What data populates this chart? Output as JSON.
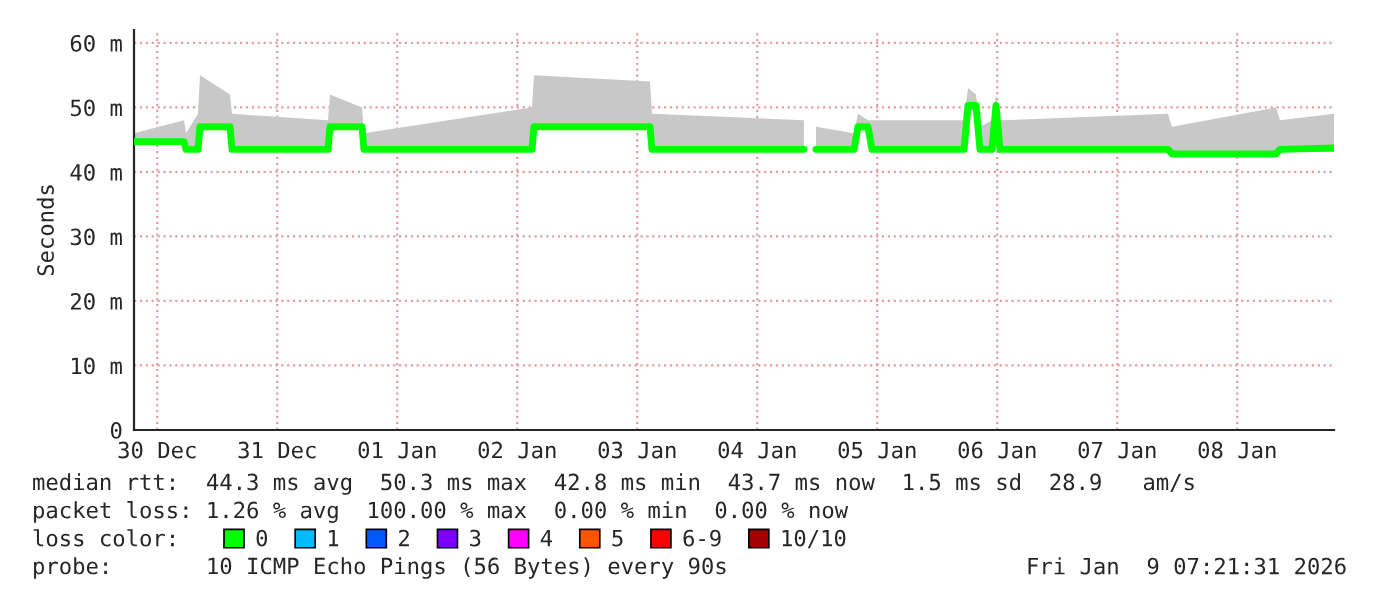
{
  "chart_data": {
    "type": "line",
    "ylabel": "Seconds",
    "x": [
      "2025-12-30T07:21",
      "2025-12-30T17:21",
      "2025-12-30T17:45",
      "2025-12-30T20:09",
      "2025-12-30T20:33",
      "2025-12-31T02:33",
      "2025-12-31T02:57",
      "2025-12-31T22:09",
      "2025-12-31T22:33",
      "2026-01-01T04:57",
      "2026-01-01T05:21",
      "2026-01-02T14:57",
      "2026-01-02T15:21",
      "2026-01-03T14:33",
      "2026-01-03T14:57",
      "2026-01-04T21:21",
      "2026-01-04T22:33",
      "2026-01-04T23:45",
      "2026-01-05T07:21",
      "2026-01-05T08:09",
      "2026-01-05T10:09",
      "2026-01-05T10:57",
      "2026-01-06T05:21",
      "2026-01-06T06:09",
      "2026-01-06T07:45",
      "2026-01-06T08:33",
      "2026-01-06T10:57",
      "2026-01-06T11:45",
      "2026-01-06T12:33",
      "2026-01-07T22:09",
      "2026-01-07T22:57",
      "2026-01-08T19:45",
      "2026-01-08T20:33",
      "2026-01-09T07:21"
    ],
    "series": [
      {
        "name": "0",
        "color": "#00ff00",
        "values": [
          44.7,
          44.7,
          43.5,
          43.5,
          47.0,
          47.0,
          43.5,
          43.5,
          47.0,
          47.0,
          43.5,
          43.5,
          47.0,
          47.0,
          43.5,
          43.5,
          null,
          43.5,
          43.5,
          47.0,
          47.0,
          43.5,
          43.5,
          50.3,
          50.3,
          43.5,
          43.5,
          50.3,
          43.5,
          43.5,
          42.8,
          42.8,
          43.5,
          43.7
        ],
        "lower": [
          44.3,
          44.3,
          43.1,
          43.1,
          46.5,
          46.5,
          43.1,
          43.1,
          46.5,
          46.5,
          43.1,
          43.1,
          46.5,
          46.5,
          43.1,
          43.1,
          null,
          43.1,
          43.1,
          46.5,
          46.5,
          43.1,
          43.1,
          49.5,
          49.5,
          43.1,
          43.1,
          49.5,
          43.1,
          43.1,
          42.2,
          42.2,
          43.1,
          43.1
        ],
        "upper": [
          46,
          48,
          46,
          49,
          55,
          52,
          49,
          48,
          52,
          50,
          46,
          50,
          55,
          54,
          49,
          48,
          null,
          47,
          46,
          49,
          48,
          48,
          48,
          53,
          52,
          47,
          48,
          52,
          48,
          49,
          47,
          50,
          48,
          49
        ]
      },
      {
        "name": "1",
        "color": "#00bbff",
        "values": [
          null,
          null,
          null,
          null,
          null,
          null,
          null,
          null,
          null,
          null,
          null,
          null,
          null,
          null,
          null,
          null,
          null,
          null,
          null,
          null,
          null,
          null,
          null,
          null,
          null,
          null,
          null,
          null,
          null,
          null,
          null,
          null,
          null,
          null
        ]
      },
      {
        "name": "2",
        "color": "#0059ff",
        "values": [
          null,
          null,
          null,
          null,
          null,
          null,
          null,
          null,
          null,
          null,
          null,
          null,
          null,
          null,
          null,
          null,
          null,
          null,
          null,
          null,
          null,
          null,
          null,
          null,
          null,
          null,
          null,
          null,
          null,
          null,
          null,
          null,
          null,
          null
        ]
      },
      {
        "name": "3",
        "color": "#7e00ff",
        "values": [
          null,
          null,
          null,
          null,
          null,
          null,
          null,
          null,
          null,
          null,
          null,
          null,
          null,
          null,
          null,
          null,
          null,
          null,
          null,
          null,
          null,
          null,
          null,
          null,
          null,
          null,
          null,
          null,
          null,
          null,
          null,
          null,
          null,
          null
        ]
      },
      {
        "name": "4",
        "color": "#ff00ff",
        "values": [
          null,
          null,
          null,
          null,
          null,
          null,
          null,
          null,
          null,
          null,
          null,
          null,
          null,
          null,
          null,
          null,
          null,
          null,
          null,
          null,
          null,
          null,
          null,
          null,
          null,
          null,
          null,
          null,
          null,
          null,
          null,
          null,
          null,
          null
        ]
      },
      {
        "name": "5",
        "color": "#ff5500",
        "values": [
          null,
          null,
          null,
          null,
          null,
          null,
          null,
          null,
          null,
          null,
          null,
          null,
          null,
          null,
          null,
          null,
          null,
          null,
          null,
          null,
          null,
          null,
          null,
          null,
          null,
          null,
          null,
          null,
          null,
          null,
          null,
          null,
          null,
          null
        ]
      },
      {
        "name": "6-9",
        "color": "#ff0000",
        "values": [
          null,
          null,
          null,
          null,
          null,
          null,
          null,
          null,
          null,
          null,
          null,
          null,
          null,
          null,
          null,
          null,
          null,
          null,
          null,
          null,
          null,
          null,
          null,
          null,
          null,
          null,
          null,
          null,
          null,
          null,
          null,
          null,
          null,
          null
        ]
      },
      {
        "name": "10/10",
        "color": "#a10000",
        "values": [
          null,
          null,
          null,
          null,
          null,
          null,
          null,
          null,
          null,
          null,
          null,
          null,
          null,
          null,
          null,
          null,
          null,
          null,
          null,
          null,
          null,
          null,
          null,
          null,
          null,
          null,
          null,
          null,
          null,
          null,
          null,
          null,
          null,
          null
        ]
      }
    ],
    "xlim": [
      "2025-12-30T07:21",
      "2026-01-09T07:21"
    ],
    "xticks": [
      {
        "value": "2025-12-30T12:00",
        "label": "30 Dec"
      },
      {
        "value": "2025-12-31T12:00",
        "label": "31 Dec"
      },
      {
        "value": "2026-01-01T12:00",
        "label": "01 Jan"
      },
      {
        "value": "2026-01-02T12:00",
        "label": "02 Jan"
      },
      {
        "value": "2026-01-03T12:00",
        "label": "03 Jan"
      },
      {
        "value": "2026-01-04T12:00",
        "label": "04 Jan"
      },
      {
        "value": "2026-01-05T12:00",
        "label": "05 Jan"
      },
      {
        "value": "2026-01-06T12:00",
        "label": "06 Jan"
      },
      {
        "value": "2026-01-07T12:00",
        "label": "07 Jan"
      },
      {
        "value": "2026-01-08T12:00",
        "label": "08 Jan"
      }
    ],
    "ylim": [
      0,
      62
    ],
    "yticks": [
      0,
      {
        "value": 10,
        "label": "10 m"
      },
      {
        "value": 20,
        "label": "20 m"
      },
      {
        "value": 30,
        "label": "30 m"
      },
      {
        "value": 40,
        "label": "40 m"
      },
      {
        "value": 50,
        "label": "50 m"
      },
      {
        "value": 60,
        "label": "60 m"
      }
    ],
    "grid": true,
    "legend": "bottom",
    "legend_title": "loss color:",
    "marker": "none",
    "line_style": "solid",
    "annotations": [
      "median rtt:  44.3 ms avg  50.3 ms max  42.8 ms min  43.7 ms now  1.5 ms sd  28.9   am/s",
      "packet loss: 1.26 % avg  100.00 % max  0.00 % min  0.00 % now",
      "probe:       10 ICMP Echo Pings (56 Bytes) every 90s",
      "Fri Jan  9 07:21:31 2026"
    ]
  }
}
